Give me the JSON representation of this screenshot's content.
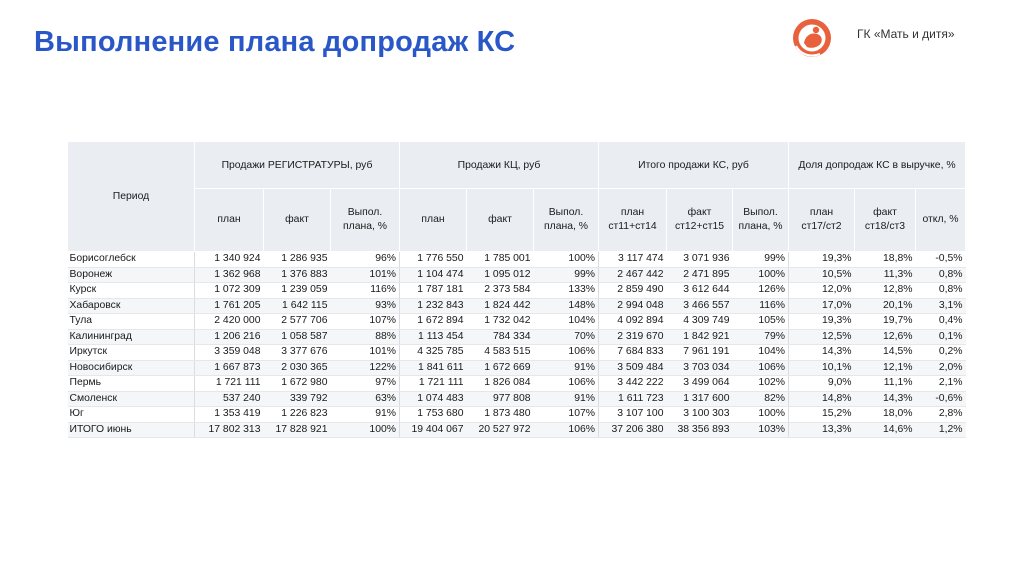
{
  "title": "Выполнение плана допродаж КС",
  "brand": "ГК «Мать и дитя»",
  "logo_icon": "mother-and-child-logo",
  "accent_color": "#2a57c7",
  "logo_color": "#e8603c",
  "table": {
    "period_header": "Период",
    "groups": [
      "Продажи РЕГИСТРАТУРЫ, руб",
      "Продажи КЦ, руб",
      "Итого продажи КС, руб",
      "Доля допродаж КС в выручке, %"
    ],
    "subheaders": [
      [
        "план",
        "факт",
        "Выпол.\nплана, %"
      ],
      [
        "план",
        "факт",
        "Выпол.\nплана, %"
      ],
      [
        "план\nст11+ст14",
        "факт\nст12+ст15",
        "Выпол.\nплана, %"
      ],
      [
        "план\nст17/ст2",
        "факт\nст18/ст3",
        "откл, %"
      ]
    ],
    "rows": [
      [
        "Борисоглебск",
        "1 340 924",
        "1 286 935",
        "96%",
        "1 776 550",
        "1 785 001",
        "100%",
        "3 117 474",
        "3 071 936",
        "99%",
        "19,3%",
        "18,8%",
        "-0,5%"
      ],
      [
        "Воронеж",
        "1 362 968",
        "1 376 883",
        "101%",
        "1 104 474",
        "1 095 012",
        "99%",
        "2 467 442",
        "2 471 895",
        "100%",
        "10,5%",
        "11,3%",
        "0,8%"
      ],
      [
        "Курск",
        "1 072 309",
        "1 239 059",
        "116%",
        "1 787 181",
        "2 373 584",
        "133%",
        "2 859 490",
        "3 612 644",
        "126%",
        "12,0%",
        "12,8%",
        "0,8%"
      ],
      [
        "Хабаровск",
        "1 761 205",
        "1 642 115",
        "93%",
        "1 232 843",
        "1 824 442",
        "148%",
        "2 994 048",
        "3 466 557",
        "116%",
        "17,0%",
        "20,1%",
        "3,1%"
      ],
      [
        "Тула",
        "2 420 000",
        "2 577 706",
        "107%",
        "1 672 894",
        "1 732 042",
        "104%",
        "4 092 894",
        "4 309 749",
        "105%",
        "19,3%",
        "19,7%",
        "0,4%"
      ],
      [
        "Калининград",
        "1 206 216",
        "1 058 587",
        "88%",
        "1 113 454",
        "784 334",
        "70%",
        "2 319 670",
        "1 842 921",
        "79%",
        "12,5%",
        "12,6%",
        "0,1%"
      ],
      [
        "Иркутск",
        "3 359 048",
        "3 377 676",
        "101%",
        "4 325 785",
        "4 583 515",
        "106%",
        "7 684 833",
        "7 961 191",
        "104%",
        "14,3%",
        "14,5%",
        "0,2%"
      ],
      [
        "Новосибирск",
        "1 667 873",
        "2 030 365",
        "122%",
        "1 841 611",
        "1 672 669",
        "91%",
        "3 509 484",
        "3 703 034",
        "106%",
        "10,1%",
        "12,1%",
        "2,0%"
      ],
      [
        "Пермь",
        "1 721 111",
        "1 672 980",
        "97%",
        "1 721 111",
        "1 826 084",
        "106%",
        "3 442 222",
        "3 499 064",
        "102%",
        "9,0%",
        "11,1%",
        "2,1%"
      ],
      [
        "Смоленск",
        "537 240",
        "339 792",
        "63%",
        "1 074 483",
        "977 808",
        "91%",
        "1 611 723",
        "1 317 600",
        "82%",
        "14,8%",
        "14,3%",
        "-0,6%"
      ],
      [
        "Юг",
        "1 353 419",
        "1 226 823",
        "91%",
        "1 753 680",
        "1 873 480",
        "107%",
        "3 107 100",
        "3 100 303",
        "100%",
        "15,2%",
        "18,0%",
        "2,8%"
      ],
      [
        "ИТОГО июнь",
        "17 802 313",
        "17 828 921",
        "100%",
        "19 404 067",
        "20 527 972",
        "106%",
        "37 206 380",
        "38 356 893",
        "103%",
        "13,3%",
        "14,6%",
        "1,2%"
      ]
    ]
  }
}
